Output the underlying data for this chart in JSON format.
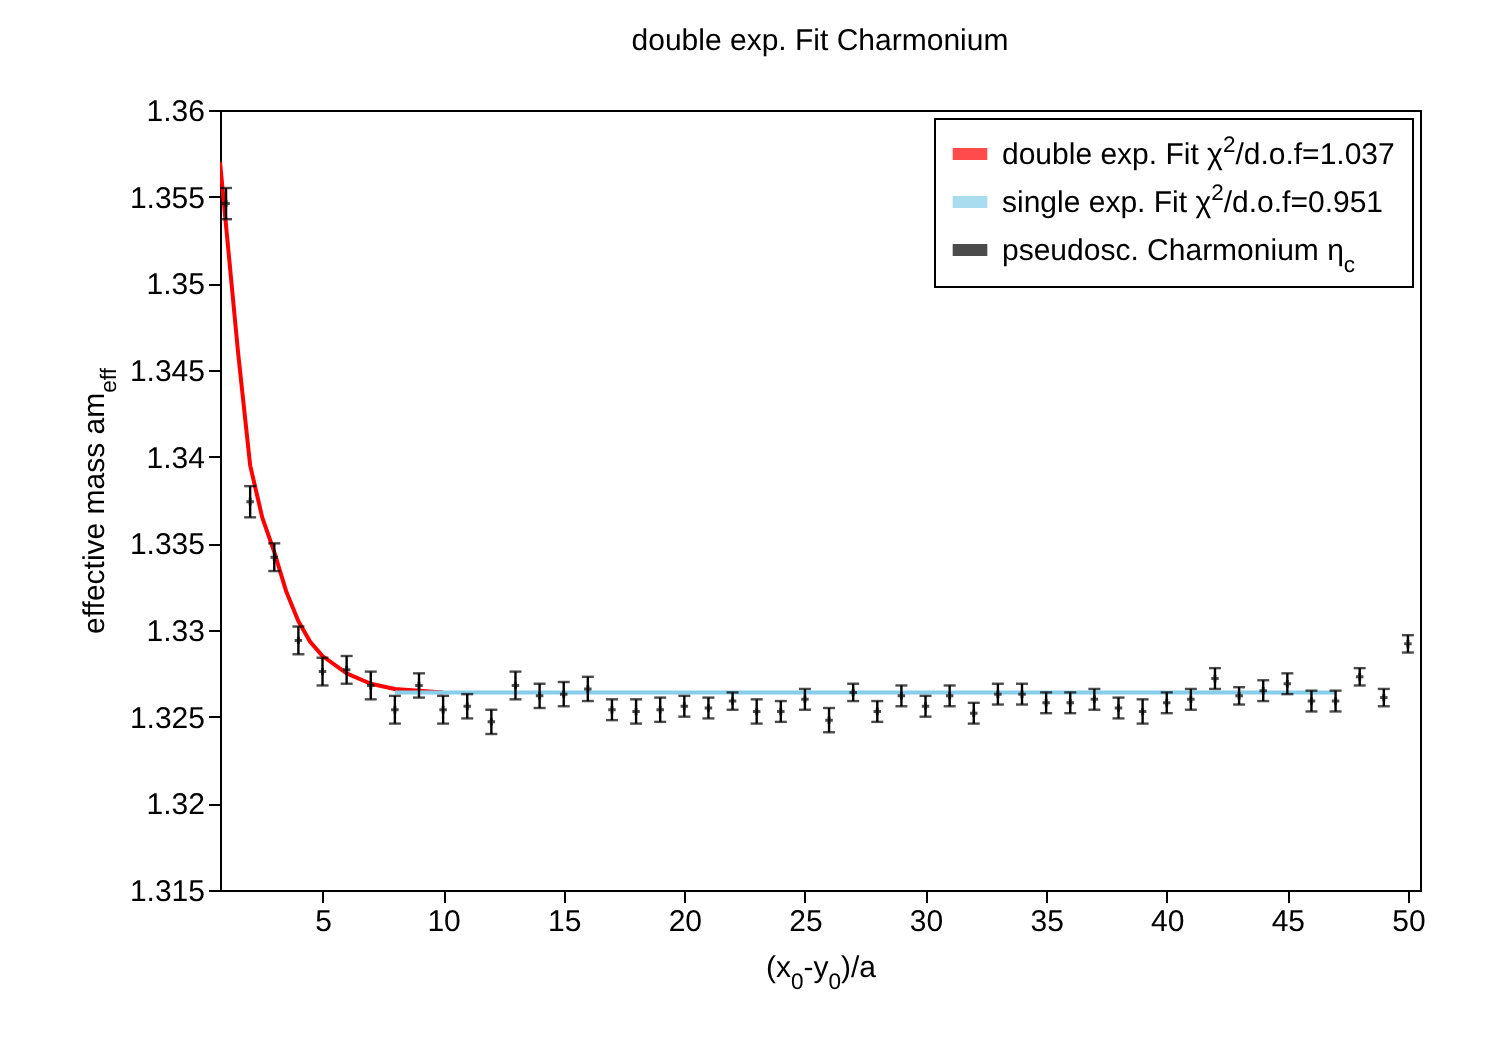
{
  "chart_data": {
    "type": "scatter",
    "title": "double exp. Fit Charmonium",
    "xlabel": "(x$_{0}$-y$_{0}$)/a",
    "ylabel": "effective mass am$_{eff}$",
    "xlim": [
      0.75,
      50.5
    ],
    "xticks": [
      5,
      10,
      15,
      20,
      25,
      30,
      35,
      40,
      45,
      50
    ],
    "ylim": [
      1.315,
      1.36
    ],
    "yticks": [
      1.315,
      1.32,
      1.325,
      1.33,
      1.335,
      1.34,
      1.345,
      1.35,
      1.355,
      1.36
    ],
    "grid": false,
    "legend": "top right",
    "series": [
      {
        "name": "double exp. Fit χ$^{2}$/d.o.f=1.037",
        "type": "line",
        "color": "#ff0000",
        "x": [
          0.75,
          1.5,
          2,
          2.5,
          3,
          3.5,
          4,
          4.5,
          5,
          6,
          7,
          8,
          9,
          10
        ],
        "values": [
          1.357,
          1.346,
          1.3395,
          1.3365,
          1.3345,
          1.3322,
          1.3305,
          1.3293,
          1.3285,
          1.3275,
          1.3269,
          1.3266,
          1.3265,
          1.3264
        ]
      },
      {
        "name": "single exp. Fit χ$^{2}$/d.o.f=0.951",
        "type": "line",
        "color": "#87ceeb",
        "x": [
          8,
          47
        ],
        "values": [
          1.3264,
          1.3264
        ]
      },
      {
        "name": "pseudosc. Charmonium η$_{c}$",
        "marker": "cross",
        "color": "#000000",
        "x": [
          1,
          2,
          3,
          4,
          5,
          6,
          7,
          8,
          9,
          10,
          11,
          12,
          13,
          14,
          15,
          16,
          17,
          18,
          19,
          20,
          21,
          22,
          23,
          24,
          25,
          26,
          27,
          28,
          29,
          30,
          31,
          32,
          33,
          34,
          35,
          36,
          37,
          38,
          39,
          40,
          41,
          42,
          43,
          44,
          45,
          46,
          47,
          48,
          49,
          50
        ],
        "values": [
          1.3546,
          1.3374,
          1.3342,
          1.3294,
          1.3276,
          1.3277,
          1.3268,
          1.3254,
          1.3268,
          1.3254,
          1.3256,
          1.3247,
          1.3268,
          1.3262,
          1.3263,
          1.3266,
          1.3254,
          1.3253,
          1.3254,
          1.3256,
          1.3255,
          1.3259,
          1.3253,
          1.3253,
          1.326,
          1.3248,
          1.3264,
          1.3253,
          1.3262,
          1.3256,
          1.3262,
          1.3252,
          1.3263,
          1.3263,
          1.3258,
          1.3258,
          1.326,
          1.3255,
          1.3253,
          1.3258,
          1.326,
          1.3272,
          1.3262,
          1.3265,
          1.3269,
          1.3259,
          1.3259,
          1.3273,
          1.3261,
          1.3292
        ],
        "errors": [
          0.0009,
          0.0009,
          0.0008,
          0.0008,
          0.0008,
          0.0008,
          0.0008,
          0.0008,
          0.0007,
          0.0008,
          0.0007,
          0.0007,
          0.0008,
          0.0007,
          0.0007,
          0.0007,
          0.0006,
          0.0007,
          0.0007,
          0.0006,
          0.0006,
          0.0005,
          0.0007,
          0.0006,
          0.0006,
          0.0007,
          0.0005,
          0.0006,
          0.0006,
          0.0006,
          0.0006,
          0.0006,
          0.0006,
          0.0006,
          0.0006,
          0.0006,
          0.0006,
          0.0006,
          0.0007,
          0.0006,
          0.0006,
          0.0006,
          0.0005,
          0.0006,
          0.0006,
          0.0006,
          0.0006,
          0.0005,
          0.0005,
          0.0005
        ]
      }
    ]
  }
}
